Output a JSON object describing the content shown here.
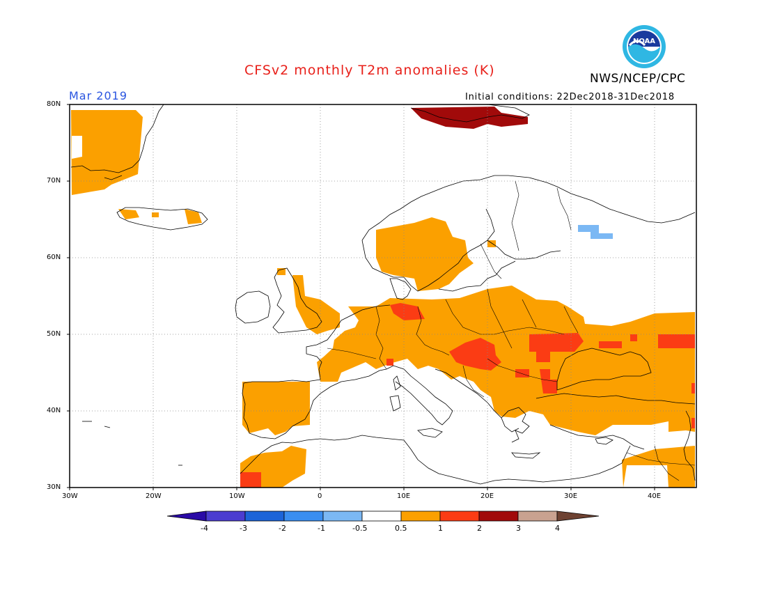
{
  "title": "CFSv2 monthly T2m anomalies (K)",
  "agency": "NWS/NCEP/CPC",
  "logo_text": "NOAA",
  "valid_month": "Mar 2019",
  "initial_conditions": "Initial conditions: 22Dec2018-31Dec2018",
  "map": {
    "region": "Europe",
    "lon_range": [
      -30,
      45
    ],
    "lat_range": [
      30,
      80
    ],
    "lat_labels": [
      "80N",
      "70N",
      "60N",
      "50N",
      "40N",
      "30N"
    ],
    "lon_labels": [
      "30W",
      "20W",
      "10W",
      "0",
      "10E",
      "20E",
      "30E",
      "40E"
    ],
    "grid": "dotted"
  },
  "colorbar": {
    "labels": [
      "-4",
      "-3",
      "-2",
      "-1",
      "-0.5",
      "0.5",
      "1",
      "2",
      "3",
      "4"
    ],
    "colors": [
      "#2a0aa6",
      "#4b3dd0",
      "#1c64d8",
      "#3a8ef0",
      "#7bb8f4",
      "#ffffff",
      "#fba000",
      "#fb3c14",
      "#a10a0a",
      "#c9a290",
      "#6e4232"
    ]
  }
}
